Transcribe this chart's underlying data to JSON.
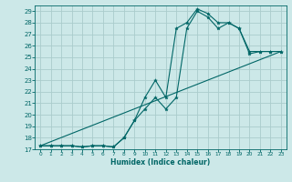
{
  "xlabel": "Humidex (Indice chaleur)",
  "xlim": [
    -0.5,
    23.5
  ],
  "ylim": [
    17,
    29.5
  ],
  "xticks": [
    0,
    1,
    2,
    3,
    4,
    5,
    6,
    7,
    8,
    9,
    10,
    11,
    12,
    13,
    14,
    15,
    16,
    17,
    18,
    19,
    20,
    21,
    22,
    23
  ],
  "yticks": [
    17,
    18,
    19,
    20,
    21,
    22,
    23,
    24,
    25,
    26,
    27,
    28,
    29
  ],
  "bg_color": "#cce8e8",
  "line_color": "#006666",
  "grid_color": "#aacccc",
  "line1_x": [
    0,
    1,
    2,
    3,
    4,
    5,
    6,
    7,
    8,
    9,
    10,
    11,
    12,
    13,
    14,
    15,
    16,
    17,
    18,
    19,
    20,
    21,
    22,
    23
  ],
  "line1_y": [
    17.3,
    17.3,
    17.3,
    17.3,
    17.2,
    17.3,
    17.3,
    17.2,
    18.0,
    19.5,
    21.5,
    23.0,
    21.5,
    27.5,
    28.0,
    29.2,
    28.8,
    28.0,
    28.0,
    27.5,
    25.5,
    25.5,
    25.5,
    25.5
  ],
  "line2_x": [
    0,
    1,
    2,
    3,
    4,
    5,
    6,
    7,
    8,
    9,
    10,
    11,
    12,
    13,
    14,
    15,
    16,
    17,
    18,
    19,
    20,
    21,
    22,
    23
  ],
  "line2_y": [
    17.3,
    17.3,
    17.3,
    17.3,
    17.2,
    17.3,
    17.3,
    17.2,
    18.0,
    19.5,
    20.5,
    21.5,
    20.5,
    21.5,
    27.5,
    29.0,
    28.5,
    27.5,
    28.0,
    27.5,
    25.3,
    25.5,
    25.5,
    25.5
  ],
  "line3_x": [
    0,
    23
  ],
  "line3_y": [
    17.3,
    25.5
  ]
}
